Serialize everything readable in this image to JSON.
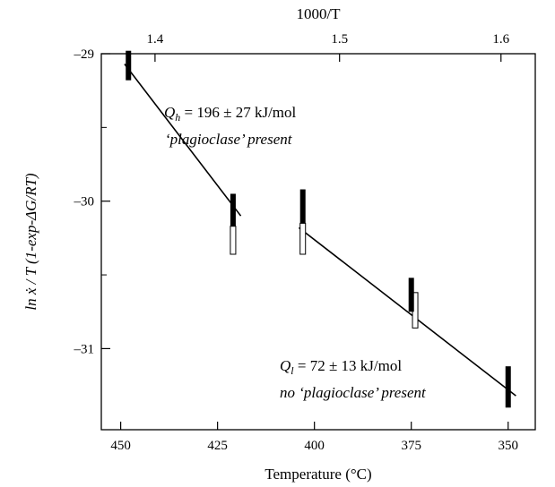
{
  "chart_data": {
    "type": "scatter",
    "title": "",
    "xlabel": "Temperature (°C)",
    "xlabel_top": "1000/T",
    "ylabel": "ln ẋ / T (1-exp-ΔG/RT)",
    "xlim_temperature": [
      455,
      343
    ],
    "ylim": [
      -31.55,
      -29
    ],
    "x_ticks_bottom": [
      {
        "value": 450,
        "label": "450"
      },
      {
        "value": 425,
        "label": "425"
      },
      {
        "value": 400,
        "label": "400"
      },
      {
        "value": 375,
        "label": "375"
      },
      {
        "value": 350,
        "label": "350"
      }
    ],
    "x_ticks_top": [
      {
        "value": 1.4,
        "label": "1.4"
      },
      {
        "value": 1.5,
        "label": "1.5"
      },
      {
        "value": 1.6,
        "label": "1.6"
      }
    ],
    "y_ticks": [
      {
        "value": -29,
        "label": "–29"
      },
      {
        "value": -30,
        "label": "–30"
      },
      {
        "value": -31,
        "label": "–31"
      }
    ],
    "y_minor_ticks": [
      -29.5,
      -30.5
    ],
    "grid": false,
    "series": [
      {
        "style": "filled-bar",
        "points": [
          {
            "temperature": 448,
            "y_low": -29.18,
            "y_high": -28.98
          },
          {
            "temperature": 421,
            "y_low": -30.17,
            "y_high": -29.95
          },
          {
            "temperature": 403,
            "y_low": -30.15,
            "y_high": -29.92
          },
          {
            "temperature": 375,
            "y_low": -30.75,
            "y_high": -30.52
          },
          {
            "temperature": 350,
            "y_low": -31.4,
            "y_high": -31.12
          }
        ]
      },
      {
        "style": "open-bar",
        "points": [
          {
            "temperature": 421,
            "y_low": -30.36,
            "y_high": -30.17
          },
          {
            "temperature": 403,
            "y_low": -30.36,
            "y_high": -30.15
          },
          {
            "temperature": 374,
            "y_low": -30.86,
            "y_high": -30.62
          }
        ]
      }
    ],
    "fits": [
      {
        "from": {
          "temperature": 449,
          "y": -29.07
        },
        "to": {
          "temperature": 419,
          "y": -30.1
        }
      },
      {
        "from": {
          "temperature": 404,
          "y": -30.18
        },
        "to": {
          "temperature": 348,
          "y": -31.32
        }
      }
    ],
    "annotations": [
      {
        "text": "Qh = 196 ± 27 kJ/mol",
        "line2": "‘plagioclase’ present"
      },
      {
        "text": "Ql = 72 ± 13 kJ/mol",
        "line2": "no ‘plagioclase’ present"
      }
    ]
  }
}
